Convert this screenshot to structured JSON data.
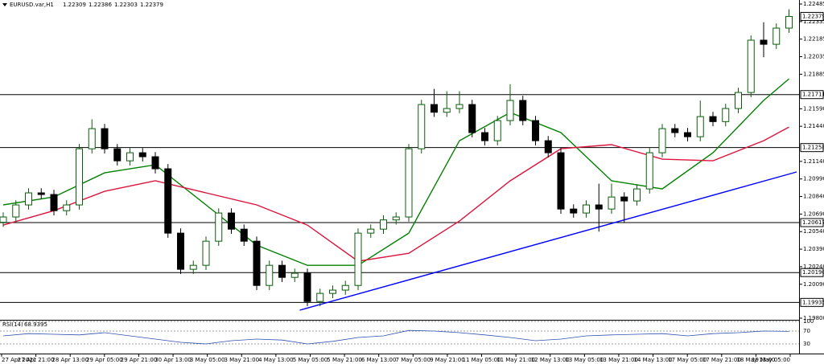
{
  "chart_data": {
    "type": "candlestick",
    "symbol": "EURUSD.var,H1",
    "header": {
      "open": 1.22309,
      "high": 1.22386,
      "low": 1.22303,
      "close": 1.22379
    },
    "up_color": "#0b5d0b",
    "down_color": "#000000",
    "ylim": [
      1.198,
      1.22485
    ],
    "yticks": [
      1.22485,
      1.22335,
      1.22185,
      1.22035,
      1.21885,
      {
        "value": 1.2159,
        "label": "1.21590"
      },
      {
        "value": 1.2144,
        "label": "1.21440"
      },
      {
        "value": 1.2114,
        "label": "1.21140"
      },
      {
        "value": 1.2099,
        "label": "1.20990"
      },
      {
        "value": 1.2084,
        "label": "1.20840"
      },
      {
        "value": 1.2069,
        "label": "1.20690"
      },
      {
        "value": 1.2054,
        "label": "1.20540"
      },
      {
        "value": 1.2039,
        "label": "1.20390"
      },
      {
        "value": 1.2024,
        "label": "1.20240"
      },
      {
        "value": 1.2009,
        "label": "1.20090"
      },
      {
        "value": 1.198,
        "label": "1.19800"
      }
    ],
    "levels": {
      "color": "#000000",
      "values": [
        1.21711,
        1.21258,
        1.20617,
        {
          "value": 1.2019,
          "label": "1.20190"
        },
        1.19935
      ]
    },
    "candles": {
      "open": [
        1.2062,
        1.20665,
        1.20768,
        1.20871,
        1.20857,
        1.20719,
        1.20768,
        1.21248,
        1.2142,
        1.21248,
        1.21145,
        1.21214,
        1.2118,
        1.21077,
        1.20527,
        1.20218,
        1.20252,
        1.20458,
        1.20699,
        1.20561,
        1.20458,
        1.2008,
        1.20252,
        1.20149,
        1.20184,
        1.19943,
        1.20012,
        1.2004,
        1.2008,
        1.20527,
        1.20561,
        1.2064,
        1.20665,
        1.21248,
        1.21626,
        1.2156,
        1.21592,
        1.21626,
        1.21386,
        1.21317,
        1.21489,
        1.21661,
        1.21489,
        1.21317,
        1.21214,
        1.20733,
        1.20699,
        1.20768,
        1.20733,
        1.20836,
        1.20802,
        1.20905,
        1.21214,
        1.2142,
        1.21386,
        1.21351,
        1.21523,
        1.2148,
        1.21592,
        1.21729,
        1.22176,
        1.22141,
        1.22279
      ],
      "high": [
        1.20705,
        1.20808,
        1.20911,
        1.20911,
        1.20897,
        1.20808,
        1.21288,
        1.215,
        1.2146,
        1.21288,
        1.21254,
        1.21254,
        1.2122,
        1.21117,
        1.20567,
        1.20292,
        1.20498,
        1.20739,
        1.20739,
        1.20601,
        1.20498,
        1.20292,
        1.20292,
        1.20224,
        1.20224,
        1.20052,
        1.2008,
        1.2012,
        1.20567,
        1.20601,
        1.2068,
        1.20705,
        1.21288,
        1.21666,
        1.2176,
        1.2174,
        1.2174,
        1.21666,
        1.21426,
        1.21529,
        1.218,
        1.21701,
        1.21529,
        1.21357,
        1.21254,
        1.20773,
        1.20808,
        1.2095,
        1.2095,
        1.20876,
        1.20945,
        1.21254,
        1.2146,
        1.2146,
        1.21426,
        1.2166,
        1.21563,
        1.21632,
        1.21769,
        1.22216,
        1.2233,
        1.22319,
        1.2244
      ],
      "low": [
        1.2058,
        1.20625,
        1.20728,
        1.20817,
        1.20679,
        1.20679,
        1.20728,
        1.21208,
        1.21208,
        1.21105,
        1.21105,
        1.2114,
        1.21037,
        1.20487,
        1.20178,
        1.20178,
        1.20212,
        1.20418,
        1.20521,
        1.20418,
        1.2004,
        1.2004,
        1.20109,
        1.20109,
        1.19903,
        1.19903,
        1.19972,
        1.2,
        1.2004,
        1.20487,
        1.20521,
        1.206,
        1.20625,
        1.21208,
        1.2152,
        1.2152,
        1.21552,
        1.21346,
        1.21277,
        1.21277,
        1.21449,
        1.21449,
        1.21277,
        1.21174,
        1.20693,
        1.20659,
        1.20659,
        1.2054,
        1.20693,
        1.20617,
        1.20762,
        1.20865,
        1.21174,
        1.21346,
        1.21311,
        1.21311,
        1.2144,
        1.2144,
        1.21552,
        1.21689,
        1.2203,
        1.22101,
        1.22239
      ],
      "close": [
        1.20665,
        1.20768,
        1.20871,
        1.20857,
        1.20719,
        1.20768,
        1.21248,
        1.2142,
        1.21248,
        1.21145,
        1.21214,
        1.2118,
        1.21077,
        1.20527,
        1.20218,
        1.20252,
        1.20458,
        1.20699,
        1.20561,
        1.20458,
        1.2008,
        1.20252,
        1.20149,
        1.20184,
        1.19943,
        1.20012,
        1.2004,
        1.2008,
        1.20527,
        1.20561,
        1.2064,
        1.20665,
        1.21248,
        1.21626,
        1.2156,
        1.21592,
        1.21626,
        1.21386,
        1.21317,
        1.21489,
        1.21661,
        1.21489,
        1.21317,
        1.21214,
        1.20733,
        1.20699,
        1.20768,
        1.20733,
        1.20836,
        1.20802,
        1.20905,
        1.21214,
        1.2142,
        1.21386,
        1.21351,
        1.21523,
        1.2148,
        1.21592,
        1.21729,
        1.22176,
        1.22141,
        1.22279,
        1.22379
      ]
    },
    "series": [
      {
        "color": "#008000",
        "x": [
          0,
          4,
          8,
          12,
          16,
          20,
          24,
          28,
          32,
          36,
          40,
          44,
          48,
          52,
          56,
          60,
          62
        ],
        "values": [
          1.20768,
          1.20836,
          1.21042,
          1.21111,
          1.20768,
          1.20424,
          1.20252,
          1.20252,
          1.20527,
          1.21317,
          1.21558,
          1.21386,
          1.20974,
          1.20905,
          1.21214,
          1.21661,
          1.21846
        ]
      },
      {
        "color": "#dc143c",
        "x": [
          0,
          4,
          8,
          12,
          16,
          20,
          24,
          28,
          32,
          36,
          40,
          44,
          48,
          52,
          56,
          60,
          62
        ],
        "values": [
          1.20596,
          1.20719,
          1.20884,
          1.20974,
          1.20871,
          1.20768,
          1.20596,
          1.20287,
          1.20355,
          1.2063,
          1.20974,
          1.21248,
          1.21283,
          1.21159,
          1.21145,
          1.21317,
          1.21434
        ]
      },
      {
        "color": "#0000ff",
        "x": [
          23.4,
          62.6
        ],
        "values": [
          1.19869,
          1.2105
        ]
      }
    ],
    "rsi": {
      "name": "RSI(14)",
      "last": 68.9395,
      "color": "#3050b0",
      "ylim": [
        0,
        100
      ],
      "yticks": [
        100,
        70,
        30
      ],
      "x": [
        0,
        2,
        4,
        6,
        8,
        10,
        12,
        14,
        16,
        18,
        20,
        22,
        24,
        26,
        28,
        30,
        32,
        34,
        36,
        38,
        40,
        42,
        44,
        46,
        48,
        50,
        52,
        54,
        56,
        58,
        60,
        62
      ],
      "values": [
        55,
        62,
        60,
        58,
        65,
        55,
        45,
        35,
        30,
        40,
        45,
        42,
        30,
        38,
        50,
        55,
        72,
        70,
        65,
        58,
        50,
        40,
        45,
        55,
        58,
        60,
        62,
        55,
        62,
        65,
        70,
        69
      ]
    },
    "time_axis": [
      "27 Apr 2021",
      "27 Apr 21:00",
      "28 Apr 13:00",
      "29 Apr 05:00",
      "29 Apr 21:00",
      "30 Apr 13:00",
      "3 May 05:00",
      "3 May 21:00",
      "4 May 13:00",
      "5 May 05:00",
      "5 May 21:00",
      "6 May 13:00",
      "7 May 05:00",
      "9 May 21:00",
      "11 May 05:00",
      "11 May 21:00",
      "12 May 13:00",
      "13 May 05:00",
      "13 May 21:00",
      "14 May 13:00",
      "17 May 05:00",
      "17 May 21:00",
      "18 May 13:00",
      "19 May 05:00"
    ]
  }
}
